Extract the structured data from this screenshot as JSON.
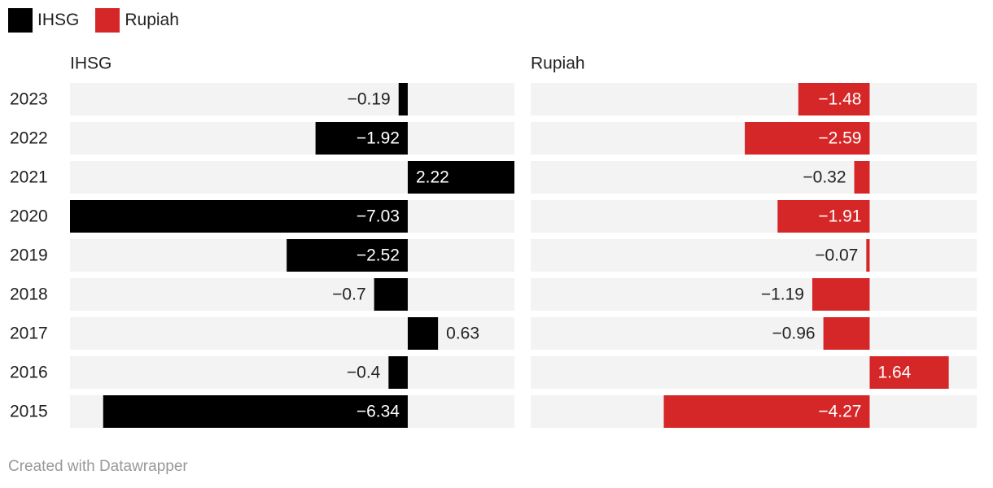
{
  "colors": {
    "IHSG": "#000000",
    "Rupiah": "#d62728",
    "track": "#f3f3f3"
  },
  "legend": [
    {
      "label": "IHSG",
      "color": "#000000"
    },
    {
      "label": "Rupiah",
      "color": "#d62728"
    }
  ],
  "footer": "Created with Datawrapper",
  "chart_data": {
    "type": "bar",
    "orientation": "horizontal",
    "categories": [
      "2023",
      "2022",
      "2021",
      "2020",
      "2019",
      "2018",
      "2017",
      "2016",
      "2015"
    ],
    "series": [
      {
        "name": "IHSG",
        "values": [
          -0.19,
          -1.92,
          2.22,
          -7.03,
          -2.52,
          -0.7,
          0.63,
          -0.4,
          -6.34
        ],
        "labels": [
          "−0.19",
          "−1.92",
          "2.22",
          "−7.03",
          "−2.52",
          "−0.7",
          "0.63",
          "−0.4",
          "−6.34"
        ]
      },
      {
        "name": "Rupiah",
        "values": [
          -1.48,
          -2.59,
          -0.32,
          -1.91,
          -0.07,
          -1.19,
          -0.96,
          1.64,
          -4.27
        ],
        "labels": [
          "−1.48",
          "−2.59",
          "−0.32",
          "−1.91",
          "−0.07",
          "−1.19",
          "−0.96",
          "1.64",
          "−4.27"
        ]
      }
    ],
    "xlim": [
      -7.03,
      2.22
    ],
    "legend_position": "top-left",
    "grid": false
  }
}
